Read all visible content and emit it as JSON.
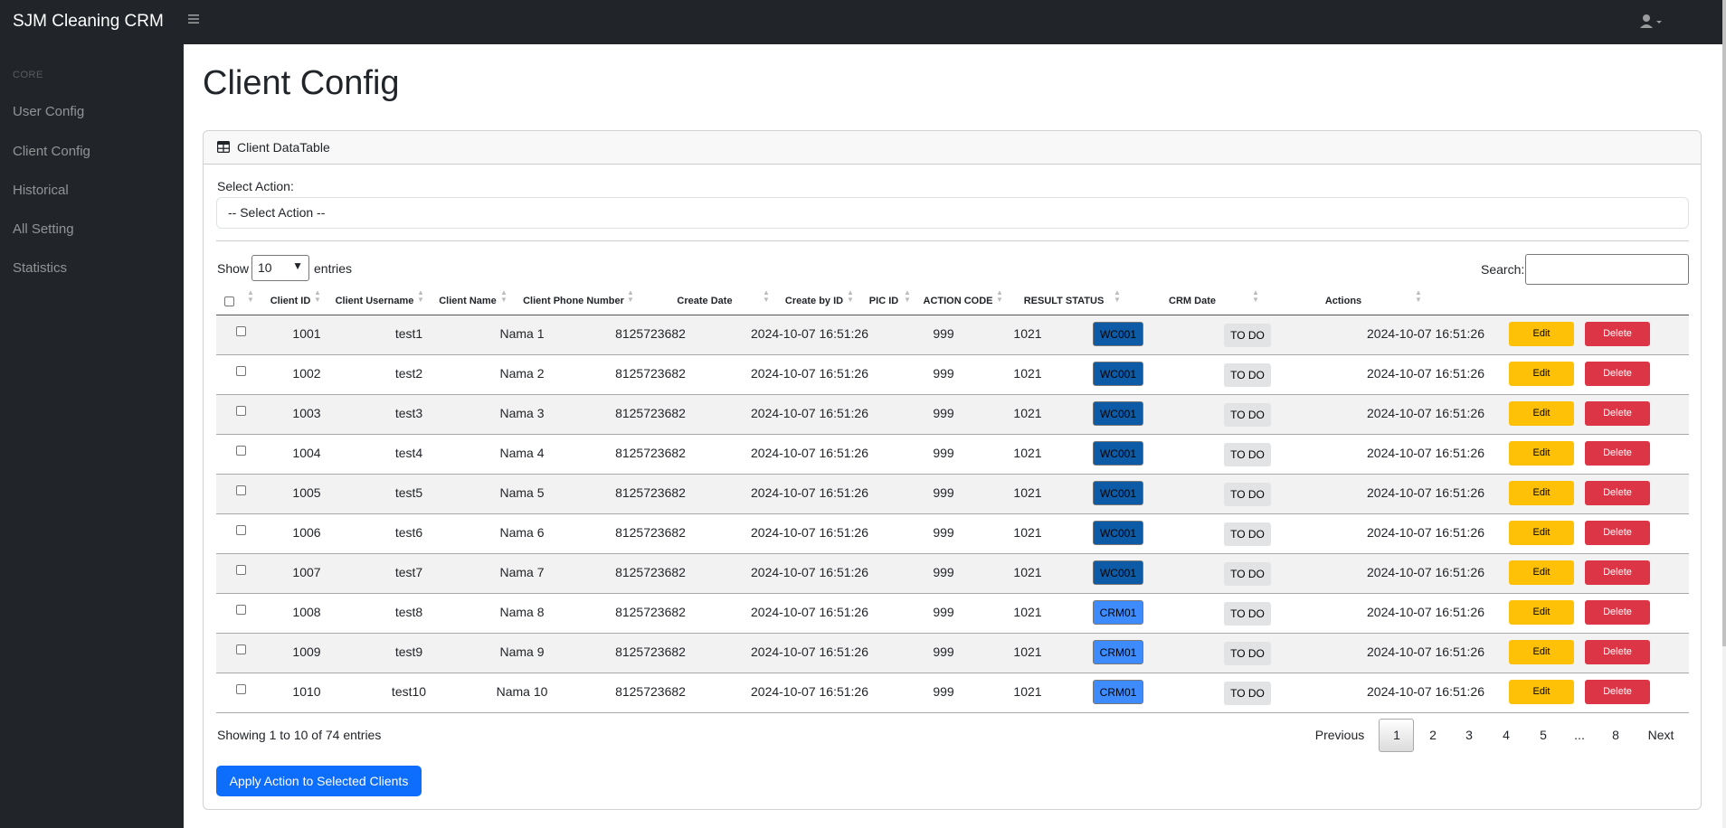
{
  "app": {
    "brand": "SJM Cleaning CRM"
  },
  "sidebar": {
    "heading": "CORE",
    "items": [
      {
        "label": "User Config"
      },
      {
        "label": "Client Config"
      },
      {
        "label": "Historical"
      },
      {
        "label": "All Setting"
      },
      {
        "label": "Statistics"
      }
    ]
  },
  "page": {
    "title": "Client Config"
  },
  "card": {
    "title": "Client DataTable"
  },
  "select_action": {
    "label": "Select Action:",
    "value": "-- Select Action --"
  },
  "length": {
    "show": "Show",
    "value": "10",
    "entries": "entries"
  },
  "search": {
    "label": "Search:",
    "value": ""
  },
  "table": {
    "columns": [
      "Client ID",
      "Client Username",
      "Client Name",
      "Client Phone Number",
      "Create Date",
      "Create by ID",
      "PIC ID",
      "ACTION CODE",
      "RESULT STATUS",
      "CRM Date",
      "Actions"
    ],
    "rows": [
      {
        "id": "1001",
        "username": "test1",
        "name": "Nama 1",
        "phone": "8125723682",
        "create_date": "2024-10-07 16:51:26",
        "create_by": "999",
        "pic": "1021",
        "code": "WC001",
        "status": "TO DO",
        "crm_date": "2024-10-07 16:51:26"
      },
      {
        "id": "1002",
        "username": "test2",
        "name": "Nama 2",
        "phone": "8125723682",
        "create_date": "2024-10-07 16:51:26",
        "create_by": "999",
        "pic": "1021",
        "code": "WC001",
        "status": "TO DO",
        "crm_date": "2024-10-07 16:51:26"
      },
      {
        "id": "1003",
        "username": "test3",
        "name": "Nama 3",
        "phone": "8125723682",
        "create_date": "2024-10-07 16:51:26",
        "create_by": "999",
        "pic": "1021",
        "code": "WC001",
        "status": "TO DO",
        "crm_date": "2024-10-07 16:51:26"
      },
      {
        "id": "1004",
        "username": "test4",
        "name": "Nama 4",
        "phone": "8125723682",
        "create_date": "2024-10-07 16:51:26",
        "create_by": "999",
        "pic": "1021",
        "code": "WC001",
        "status": "TO DO",
        "crm_date": "2024-10-07 16:51:26"
      },
      {
        "id": "1005",
        "username": "test5",
        "name": "Nama 5",
        "phone": "8125723682",
        "create_date": "2024-10-07 16:51:26",
        "create_by": "999",
        "pic": "1021",
        "code": "WC001",
        "status": "TO DO",
        "crm_date": "2024-10-07 16:51:26"
      },
      {
        "id": "1006",
        "username": "test6",
        "name": "Nama 6",
        "phone": "8125723682",
        "create_date": "2024-10-07 16:51:26",
        "create_by": "999",
        "pic": "1021",
        "code": "WC001",
        "status": "TO DO",
        "crm_date": "2024-10-07 16:51:26"
      },
      {
        "id": "1007",
        "username": "test7",
        "name": "Nama 7",
        "phone": "8125723682",
        "create_date": "2024-10-07 16:51:26",
        "create_by": "999",
        "pic": "1021",
        "code": "WC001",
        "status": "TO DO",
        "crm_date": "2024-10-07 16:51:26"
      },
      {
        "id": "1008",
        "username": "test8",
        "name": "Nama 8",
        "phone": "8125723682",
        "create_date": "2024-10-07 16:51:26",
        "create_by": "999",
        "pic": "1021",
        "code": "CRM01",
        "status": "TO DO",
        "crm_date": "2024-10-07 16:51:26"
      },
      {
        "id": "1009",
        "username": "test9",
        "name": "Nama 9",
        "phone": "8125723682",
        "create_date": "2024-10-07 16:51:26",
        "create_by": "999",
        "pic": "1021",
        "code": "CRM01",
        "status": "TO DO",
        "crm_date": "2024-10-07 16:51:26"
      },
      {
        "id": "1010",
        "username": "test10",
        "name": "Nama 10",
        "phone": "8125723682",
        "create_date": "2024-10-07 16:51:26",
        "create_by": "999",
        "pic": "1021",
        "code": "CRM01",
        "status": "TO DO",
        "crm_date": "2024-10-07 16:51:26"
      }
    ],
    "edit_label": "Edit",
    "delete_label": "Delete"
  },
  "info": "Showing 1 to 10 of 74 entries",
  "pagination": {
    "previous": "Previous",
    "pages": [
      "1",
      "2",
      "3",
      "4",
      "5",
      "...",
      "8"
    ],
    "next": "Next",
    "current": "1"
  },
  "apply_button": "Apply Action to Selected Clients",
  "colors": {
    "nav_bg": "#212529",
    "primary": "#0d6efd",
    "wc_badge": "#0d5aa7",
    "crm_badge": "#3d8bfd",
    "edit": "#ffc107",
    "delete": "#dc3545",
    "status_bg": "#e2e3e5"
  },
  "icons": [
    "bars-icon",
    "user-icon",
    "table-icon",
    "caret-down-icon",
    "sort-icon"
  ]
}
